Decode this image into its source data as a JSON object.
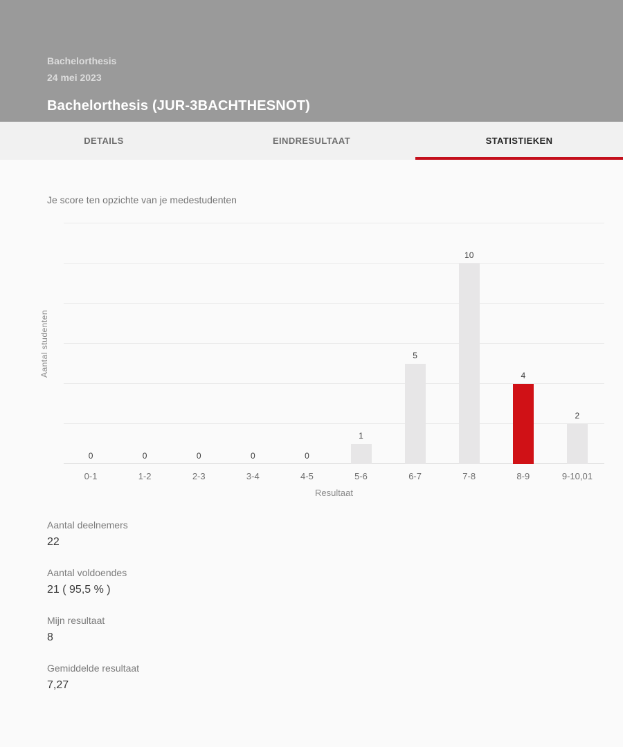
{
  "header": {
    "course_name": "Bachelorthesis",
    "date": "24 mei 2023",
    "title": "Bachelorthesis (JUR-3BACHTHESNOT)"
  },
  "tabs": [
    {
      "label": "DETAILS",
      "active": false
    },
    {
      "label": "EINDRESULTAAT",
      "active": false
    },
    {
      "label": "STATISTIEKEN",
      "active": true
    }
  ],
  "chart_data": {
    "type": "bar",
    "title": "Je score ten opzichte van je medestudenten",
    "categories": [
      "0-1",
      "1-2",
      "2-3",
      "3-4",
      "4-5",
      "5-6",
      "6-7",
      "7-8",
      "8-9",
      "9-10,01"
    ],
    "values": [
      0,
      0,
      0,
      0,
      0,
      1,
      5,
      10,
      4,
      2
    ],
    "xlabel": "Resultaat",
    "ylabel": "Aantal studenten",
    "ylim": [
      0,
      12
    ],
    "grid_interval": 2,
    "grid": true,
    "value_labels": true,
    "highlight_index": 8,
    "bar_color": "#e7e6e7",
    "highlight_color": "#d01116",
    "legend": false
  },
  "stats": [
    {
      "label": "Aantal deelnemers",
      "value": "22"
    },
    {
      "label": "Aantal voldoendes",
      "value": "21 ( 95,5 % )"
    },
    {
      "label": "Mijn resultaat",
      "value": "8"
    },
    {
      "label": "Gemiddelde resultaat",
      "value": "7,27"
    }
  ],
  "colors": {
    "header_bg": "#9a9a9a",
    "tab_bar_bg": "#f1f1f1",
    "accent_red": "#c4101c",
    "bar_gray": "#e7e6e7",
    "bar_red": "#d01116"
  }
}
